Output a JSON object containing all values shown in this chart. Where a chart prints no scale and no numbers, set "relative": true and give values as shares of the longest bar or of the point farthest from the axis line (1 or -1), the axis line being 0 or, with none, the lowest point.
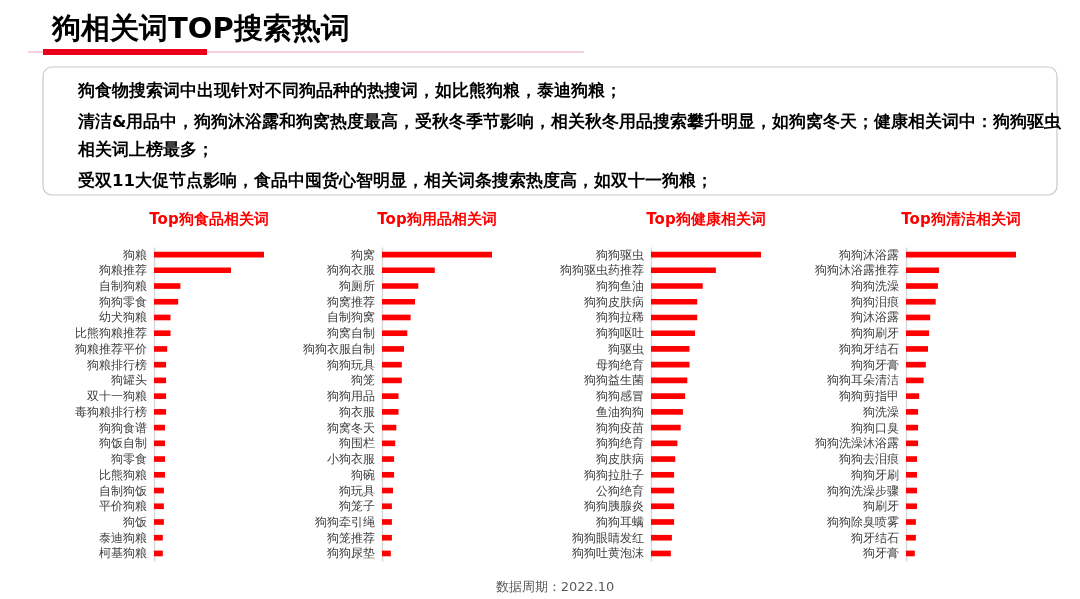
{
  "chart_data": [
    {
      "type": "other",
      "title": "狗相关词TOP搜索热词",
      "annotations": [
        "狗食物搜索词中出现针对不同狗品种的热搜词，如比熊狗粮，泰迪狗粮；",
        "清洁&用品中，狗狗沐浴露和狗窝热度最高，受秋冬季节影响，相关秋冬用品搜索攀升明显，如狗窝冬天；健康相关词中：狗狗驱虫相关词上榜最多；",
        "受双11大促节点影响，食品中囤货心智明显，相关词条搜索热度高，如双十一狗粮；"
      ]
    },
    {
      "type": "bar",
      "orientation": "horizontal",
      "relative": true,
      "title": "Top狗食品相关词",
      "color": "#ff0000",
      "categories": [
        "狗粮",
        "狗粮推荐",
        "自制狗粮",
        "狗狗零食",
        "幼犬狗粮",
        "比熊狗粮推荐",
        "狗粮推荐平价",
        "狗粮排行榜",
        "狗罐头",
        "双十一狗粮",
        "毒狗粮排行榜",
        "狗狗食谱",
        "狗饭自制",
        "狗零食",
        "比熊狗粮",
        "自制狗饭",
        "平价狗粮",
        "狗饭",
        "泰迪狗粮",
        "柯基狗粮"
      ],
      "values": [
        1,
        0.7,
        0.24,
        0.22,
        0.15,
        0.15,
        0.12,
        0.11,
        0.11,
        0.11,
        0.11,
        0.1,
        0.1,
        0.1,
        0.1,
        0.09,
        0.09,
        0.09,
        0.08,
        0.08
      ]
    },
    {
      "type": "bar",
      "orientation": "horizontal",
      "relative": true,
      "title": "Top狗用品相关词",
      "color": "#ff0000",
      "categories": [
        "狗窝",
        "狗狗衣服",
        "狗厕所",
        "狗窝推荐",
        "自制狗窝",
        "狗窝自制",
        "狗狗衣服自制",
        "狗狗玩具",
        "狗笼",
        "狗狗用品",
        "狗衣服",
        "狗窝冬天",
        "狗围栏",
        "小狗衣服",
        "狗碗",
        "狗玩具",
        "狗笼子",
        "狗狗牵引绳",
        "狗笼推荐",
        "狗狗尿垫"
      ],
      "values": [
        1,
        0.48,
        0.33,
        0.3,
        0.26,
        0.23,
        0.2,
        0.18,
        0.18,
        0.15,
        0.15,
        0.13,
        0.12,
        0.11,
        0.11,
        0.1,
        0.09,
        0.09,
        0.09,
        0.08
      ]
    },
    {
      "type": "bar",
      "orientation": "horizontal",
      "relative": true,
      "title": "Top狗健康相关词",
      "color": "#ff0000",
      "categories": [
        "狗狗驱虫",
        "狗狗驱虫药推荐",
        "狗狗鱼油",
        "狗狗皮肤病",
        "狗狗拉稀",
        "狗狗呕吐",
        "狗驱虫",
        "母狗绝育",
        "狗狗益生菌",
        "狗狗感冒",
        "鱼油狗狗",
        "狗狗疫苗",
        "狗狗绝育",
        "狗皮肤病",
        "狗狗拉肚子",
        "公狗绝育",
        "狗狗胰腺炎",
        "狗狗耳螨",
        "狗狗眼睛发红",
        "狗狗吐黄泡沫"
      ],
      "values": [
        1,
        0.59,
        0.47,
        0.42,
        0.42,
        0.4,
        0.35,
        0.35,
        0.33,
        0.31,
        0.29,
        0.27,
        0.24,
        0.22,
        0.21,
        0.21,
        0.21,
        0.21,
        0.19,
        0.18
      ]
    },
    {
      "type": "bar",
      "orientation": "horizontal",
      "relative": true,
      "title": "Top狗清洁相关词",
      "color": "#ff0000",
      "categories": [
        "狗狗沐浴露",
        "狗狗沐浴露推荐",
        "狗狗洗澡",
        "狗狗泪痕",
        "狗沐浴露",
        "狗狗刷牙",
        "狗狗牙结石",
        "狗狗牙膏",
        "狗狗耳朵清洁",
        "狗狗剪指甲",
        "狗洗澡",
        "狗狗口臭",
        "狗狗洗澡沐浴露",
        "狗狗去泪痕",
        "狗狗牙刷",
        "狗狗洗澡步骤",
        "狗刷牙",
        "狗狗除臭喷雾",
        "狗牙结石",
        "狗牙膏"
      ],
      "values": [
        1,
        0.3,
        0.29,
        0.27,
        0.22,
        0.21,
        0.2,
        0.18,
        0.16,
        0.12,
        0.11,
        0.11,
        0.11,
        0.1,
        0.1,
        0.1,
        0.1,
        0.09,
        0.09,
        0.08
      ]
    },
    {
      "type": "other",
      "annotations": [
        "数据周期：2022.10"
      ]
    }
  ]
}
